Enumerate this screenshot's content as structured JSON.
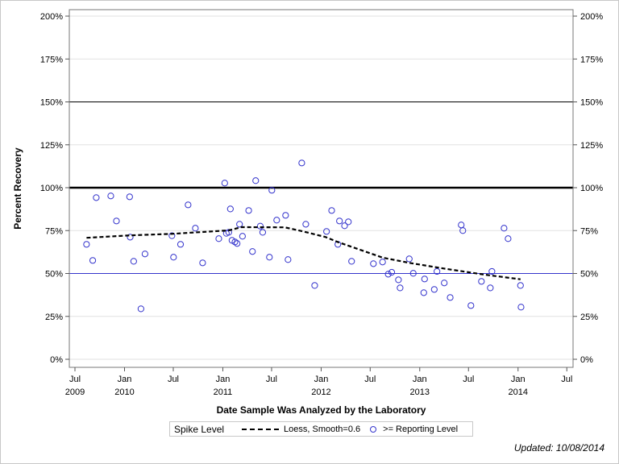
{
  "chart_data": {
    "type": "scatter",
    "title": "",
    "xlabel": "Date Sample Was Analyzed by the Laboratory",
    "ylabel": "Percent Recovery",
    "ylim": [
      0,
      200
    ],
    "yticks": [
      "0%",
      "25%",
      "50%",
      "75%",
      "100%",
      "125%",
      "150%",
      "175%",
      "200%"
    ],
    "ytick_values": [
      0,
      25,
      50,
      75,
      100,
      125,
      150,
      175,
      200
    ],
    "xticks": [
      {
        "date": "2009-07-01",
        "label": "Jul",
        "year": "2009"
      },
      {
        "date": "2010-01-01",
        "label": "Jan",
        "year": "2010"
      },
      {
        "date": "2010-07-01",
        "label": "Jul",
        "year": ""
      },
      {
        "date": "2011-01-01",
        "label": "Jan",
        "year": "2011"
      },
      {
        "date": "2011-07-01",
        "label": "Jul",
        "year": ""
      },
      {
        "date": "2012-01-01",
        "label": "Jan",
        "year": "2012"
      },
      {
        "date": "2012-07-01",
        "label": "Jul",
        "year": ""
      },
      {
        "date": "2013-01-01",
        "label": "Jan",
        "year": "2013"
      },
      {
        "date": "2013-07-01",
        "label": "Jul",
        "year": ""
      },
      {
        "date": "2014-01-01",
        "label": "Jan",
        "year": "2014"
      },
      {
        "date": "2014-07-01",
        "label": "Jul",
        "year": ""
      }
    ],
    "grid": true,
    "reference_lines": [
      {
        "value": 150,
        "color": "#000000",
        "style": "thin"
      },
      {
        "value": 100,
        "color": "#000000",
        "style": "thick"
      },
      {
        "value": 50,
        "color": "#3333cc",
        "style": "thin"
      }
    ],
    "series": [
      {
        "name": ">= Reporting Level",
        "type": "scatter",
        "color": "#3333cc",
        "points": [
          [
            "2009-08-13",
            67.0
          ],
          [
            "2009-09-05",
            57.6
          ],
          [
            "2009-09-18",
            94.2
          ],
          [
            "2009-11-11",
            95.2
          ],
          [
            "2009-12-02",
            80.6
          ],
          [
            "2010-01-20",
            94.7
          ],
          [
            "2010-01-22",
            71.2
          ],
          [
            "2010-02-04",
            57.1
          ],
          [
            "2010-03-03",
            29.4
          ],
          [
            "2010-03-18",
            61.4
          ],
          [
            "2010-06-26",
            72.0
          ],
          [
            "2010-07-02",
            59.5
          ],
          [
            "2010-07-28",
            67.0
          ],
          [
            "2010-08-25",
            90.0
          ],
          [
            "2010-09-21",
            76.4
          ],
          [
            "2010-10-18",
            56.2
          ],
          [
            "2010-12-17",
            70.3
          ],
          [
            "2011-01-08",
            102.7
          ],
          [
            "2011-01-14",
            73.4
          ],
          [
            "2011-01-23",
            74.0
          ],
          [
            "2011-01-29",
            87.6
          ],
          [
            "2011-02-04",
            69.3
          ],
          [
            "2011-02-15",
            68.4
          ],
          [
            "2011-02-23",
            67.5
          ],
          [
            "2011-03-04",
            78.7
          ],
          [
            "2011-03-15",
            71.7
          ],
          [
            "2011-04-07",
            86.7
          ],
          [
            "2011-04-21",
            62.8
          ],
          [
            "2011-05-03",
            104.1
          ],
          [
            "2011-05-20",
            77.6
          ],
          [
            "2011-05-29",
            74.0
          ],
          [
            "2011-06-23",
            59.5
          ],
          [
            "2011-07-02",
            98.5
          ],
          [
            "2011-07-20",
            81.1
          ],
          [
            "2011-08-22",
            83.9
          ],
          [
            "2011-08-31",
            58.1
          ],
          [
            "2011-10-21",
            114.4
          ],
          [
            "2011-11-05",
            78.7
          ],
          [
            "2011-12-08",
            43.0
          ],
          [
            "2012-01-21",
            74.5
          ],
          [
            "2012-02-09",
            86.7
          ],
          [
            "2012-03-03",
            67.0
          ],
          [
            "2012-03-09",
            80.6
          ],
          [
            "2012-03-28",
            77.8
          ],
          [
            "2012-04-11",
            80.1
          ],
          [
            "2012-04-23",
            57.1
          ],
          [
            "2012-07-13",
            55.7
          ],
          [
            "2012-08-16",
            56.7
          ],
          [
            "2012-09-06",
            49.6
          ],
          [
            "2012-09-19",
            50.7
          ],
          [
            "2012-10-14",
            46.3
          ],
          [
            "2012-10-20",
            41.6
          ],
          [
            "2012-11-23",
            58.5
          ],
          [
            "2012-12-08",
            50.1
          ],
          [
            "2013-01-16",
            38.8
          ],
          [
            "2013-01-19",
            46.8
          ],
          [
            "2013-02-24",
            40.7
          ],
          [
            "2013-03-06",
            51.2
          ],
          [
            "2013-04-02",
            44.5
          ],
          [
            "2013-04-24",
            36.0
          ],
          [
            "2013-06-04",
            78.3
          ],
          [
            "2013-06-10",
            75.0
          ],
          [
            "2013-07-10",
            31.3
          ],
          [
            "2013-08-18",
            45.4
          ],
          [
            "2013-09-20",
            41.6
          ],
          [
            "2013-09-26",
            51.2
          ],
          [
            "2013-11-10",
            76.4
          ],
          [
            "2013-11-25",
            70.3
          ],
          [
            "2014-01-10",
            43.0
          ],
          [
            "2014-01-12",
            30.4
          ]
        ]
      },
      {
        "name": "Loess, Smooth=0.6",
        "type": "line",
        "color": "#000000",
        "points": [
          [
            "2009-08-13",
            70.8
          ],
          [
            "2010-01-21",
            72.2
          ],
          [
            "2010-06-25",
            73.1
          ],
          [
            "2011-01-23",
            75.1
          ],
          [
            "2011-03-10",
            77.0
          ],
          [
            "2011-08-19",
            76.9
          ],
          [
            "2011-10-26",
            74.5
          ],
          [
            "2012-01-18",
            71.2
          ],
          [
            "2012-03-05",
            68.2
          ],
          [
            "2012-08-17",
            59.2
          ],
          [
            "2012-11-30",
            56.0
          ],
          [
            "2013-03-31",
            52.9
          ],
          [
            "2013-08-27",
            49.4
          ],
          [
            "2014-01-10",
            46.6
          ]
        ]
      }
    ]
  },
  "legend": {
    "title": "Spike Level",
    "loess_label": "Loess, Smooth=0.6",
    "points_label": ">= Reporting Level"
  },
  "footer": {
    "updated": "Updated: 10/08/2014"
  }
}
